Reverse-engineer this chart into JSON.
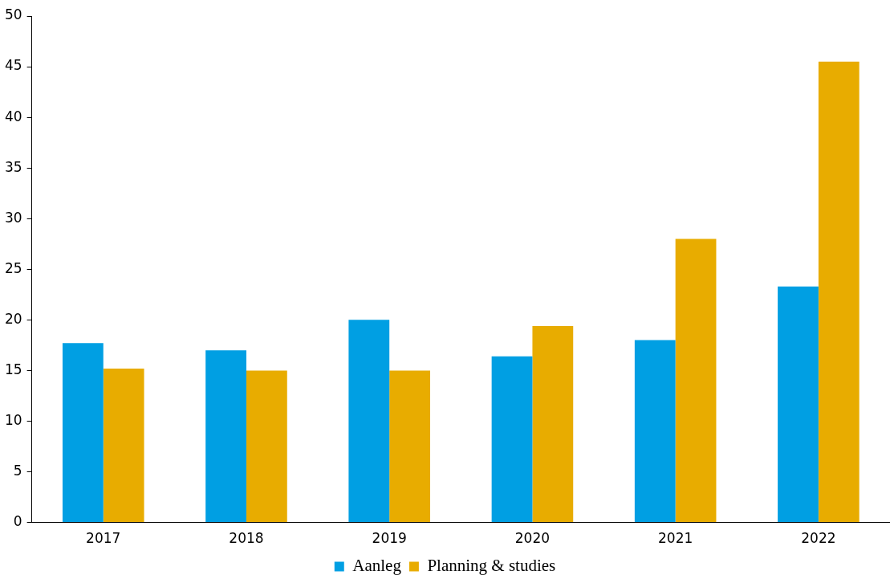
{
  "chart_data": {
    "type": "bar",
    "categories": [
      "2017",
      "2018",
      "2019",
      "2020",
      "2021",
      "2022"
    ],
    "series": [
      {
        "name": "Aanleg",
        "color": "#009fe3",
        "values": [
          17.7,
          17.0,
          20.0,
          16.4,
          18.0,
          23.3
        ]
      },
      {
        "name": "Planning & studies",
        "color": "#e8ac00",
        "values": [
          15.2,
          15.0,
          15.0,
          19.4,
          28.0,
          45.5
        ]
      }
    ],
    "ylim": [
      0,
      50
    ],
    "yticks": [
      0,
      5,
      10,
      15,
      20,
      25,
      30,
      35,
      40,
      45,
      50
    ],
    "grid": false,
    "legend": "bottom"
  }
}
